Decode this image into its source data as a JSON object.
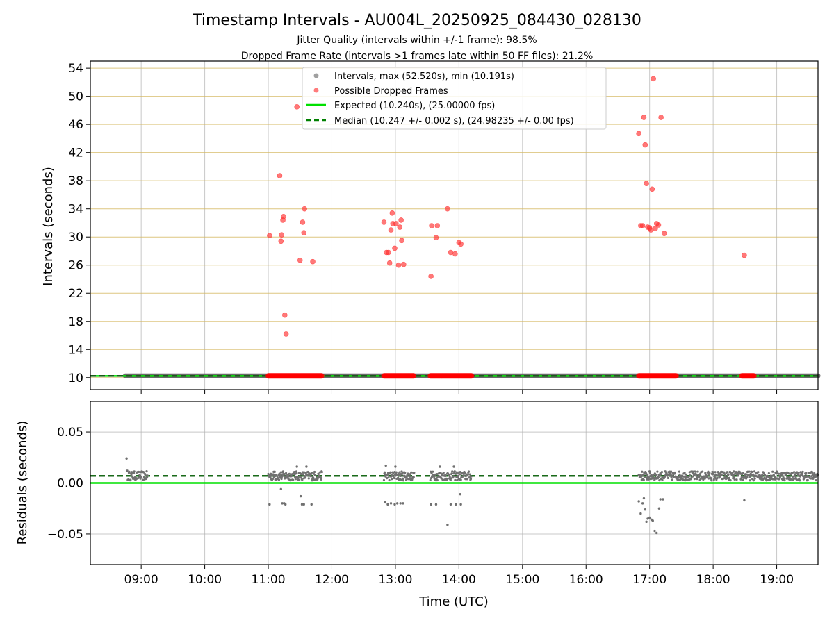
{
  "chart_data": {
    "type": "scatter",
    "title": "Timestamp Intervals - AU004L_20250925_084430_028130",
    "subtitle_1": "Jitter Quality (intervals within +/-1 frame): 98.5%",
    "subtitle_2": "Dropped Frame Rate (intervals >1 frames late within 50 FF files): 21.2%",
    "xlabel": "Time (UTC)",
    "xlim_hours": [
      8.2,
      19.65
    ],
    "xticks": [
      9,
      10,
      11,
      12,
      13,
      14,
      15,
      16,
      17,
      18,
      19
    ],
    "xtick_labels": [
      "09:00",
      "10:00",
      "11:00",
      "12:00",
      "13:00",
      "14:00",
      "15:00",
      "16:00",
      "17:00",
      "18:00",
      "19:00"
    ],
    "top_panel": {
      "ylabel": "Intervals (seconds)",
      "ylim": [
        8.3,
        55
      ],
      "yticks": [
        10,
        14,
        18,
        22,
        26,
        30,
        34,
        38,
        42,
        46,
        50,
        54
      ],
      "ytick_labels": [
        "10",
        "14",
        "18",
        "22",
        "26",
        "30",
        "34",
        "38",
        "42",
        "46",
        "50",
        "54"
      ],
      "legend": [
        {
          "label": "Intervals, max (52.520s), min (10.191s)",
          "kind": "marker",
          "color": "#a0a0a0"
        },
        {
          "label": "Possible Dropped Frames",
          "kind": "marker",
          "color": "#ff5a5a"
        },
        {
          "label": "Expected (10.240s), (25.00000 fps)",
          "kind": "line",
          "color": "#00e000"
        },
        {
          "label": "Median (10.247 +/- 0.002 s), (24.98235 +/- 0.00 fps)",
          "kind": "dashed",
          "color": "#008000"
        }
      ],
      "expected": 10.24,
      "median": 10.247,
      "normal_band": {
        "start_hour": 8.75,
        "end_hour": 19.65,
        "value": 10.247
      },
      "dropped_clusters": [
        [
          11.0,
          11.85
        ],
        [
          12.82,
          13.3
        ],
        [
          13.55,
          14.2
        ],
        [
          16.83,
          17.42
        ],
        [
          18.45,
          18.65
        ]
      ],
      "dropped_points": [
        [
          11.02,
          30.2
        ],
        [
          11.18,
          38.7
        ],
        [
          11.2,
          29.4
        ],
        [
          11.21,
          30.3
        ],
        [
          11.23,
          32.4
        ],
        [
          11.24,
          32.9
        ],
        [
          11.26,
          18.9
        ],
        [
          11.28,
          16.2
        ],
        [
          11.45,
          48.5
        ],
        [
          11.5,
          26.7
        ],
        [
          11.54,
          32.1
        ],
        [
          11.56,
          30.6
        ],
        [
          11.57,
          34.0
        ],
        [
          11.7,
          26.5
        ],
        [
          12.82,
          32.1
        ],
        [
          12.86,
          27.8
        ],
        [
          12.89,
          27.8
        ],
        [
          12.91,
          26.3
        ],
        [
          12.93,
          31.0
        ],
        [
          12.95,
          33.4
        ],
        [
          12.96,
          31.9
        ],
        [
          12.99,
          28.4
        ],
        [
          13.01,
          31.9
        ],
        [
          13.05,
          26.0
        ],
        [
          13.07,
          31.4
        ],
        [
          13.09,
          32.4
        ],
        [
          13.1,
          29.5
        ],
        [
          13.13,
          26.1
        ],
        [
          13.56,
          24.4
        ],
        [
          13.57,
          31.6
        ],
        [
          13.64,
          29.9
        ],
        [
          13.66,
          31.6
        ],
        [
          13.82,
          34.0
        ],
        [
          13.87,
          27.8
        ],
        [
          13.94,
          27.6
        ],
        [
          14.0,
          29.2
        ],
        [
          14.03,
          29.0
        ],
        [
          16.83,
          44.7
        ],
        [
          16.86,
          31.6
        ],
        [
          16.89,
          31.6
        ],
        [
          16.91,
          47.0
        ],
        [
          16.93,
          43.1
        ],
        [
          16.95,
          37.6
        ],
        [
          16.97,
          31.4
        ],
        [
          17.0,
          31.3
        ],
        [
          17.02,
          31.0
        ],
        [
          17.04,
          36.8
        ],
        [
          17.06,
          52.5
        ],
        [
          17.09,
          31.2
        ],
        [
          17.11,
          31.9
        ],
        [
          17.14,
          31.7
        ],
        [
          17.18,
          47.0
        ],
        [
          17.23,
          30.5
        ],
        [
          18.49,
          27.4
        ]
      ]
    },
    "bottom_panel": {
      "ylabel": "Residuals (seconds)",
      "ylim": [
        -0.08,
        0.08
      ],
      "yticks": [
        0.05,
        0.0,
        -0.05
      ],
      "ytick_labels": [
        "0.05",
        "0.00",
        "−0.05"
      ],
      "expected_residual": 0.0,
      "median_residual": 0.007,
      "outlier_points": [
        [
          8.77,
          0.024
        ],
        [
          8.78,
          0.012
        ],
        [
          8.79,
          0.003
        ],
        [
          11.02,
          -0.021
        ],
        [
          11.22,
          -0.02
        ],
        [
          11.25,
          -0.02
        ],
        [
          11.27,
          -0.021
        ],
        [
          11.2,
          -0.006
        ],
        [
          11.51,
          -0.013
        ],
        [
          11.53,
          -0.021
        ],
        [
          11.56,
          -0.021
        ],
        [
          11.68,
          -0.021
        ],
        [
          11.1,
          0.011
        ],
        [
          11.45,
          0.016
        ],
        [
          11.6,
          0.016
        ],
        [
          12.84,
          -0.019
        ],
        [
          12.88,
          -0.021
        ],
        [
          12.93,
          -0.02
        ],
        [
          12.99,
          -0.021
        ],
        [
          13.03,
          -0.02
        ],
        [
          13.08,
          -0.02
        ],
        [
          13.12,
          -0.02
        ],
        [
          12.85,
          0.017
        ],
        [
          13.0,
          0.016
        ],
        [
          13.56,
          -0.021
        ],
        [
          13.64,
          -0.021
        ],
        [
          13.82,
          -0.041
        ],
        [
          13.87,
          -0.021
        ],
        [
          13.95,
          -0.021
        ],
        [
          14.03,
          -0.021
        ],
        [
          14.02,
          -0.011
        ],
        [
          13.7,
          0.016
        ],
        [
          13.92,
          0.016
        ],
        [
          16.83,
          -0.018
        ],
        [
          16.86,
          -0.03
        ],
        [
          16.89,
          -0.02
        ],
        [
          16.91,
          -0.015
        ],
        [
          16.93,
          -0.026
        ],
        [
          16.95,
          -0.038
        ],
        [
          16.97,
          -0.035
        ],
        [
          17.0,
          -0.034
        ],
        [
          17.03,
          -0.036
        ],
        [
          17.05,
          -0.037
        ],
        [
          17.08,
          -0.047
        ],
        [
          17.11,
          -0.049
        ],
        [
          17.15,
          -0.025
        ],
        [
          17.17,
          -0.016
        ],
        [
          17.21,
          -0.016
        ],
        [
          18.49,
          -0.017
        ]
      ],
      "normal_clusters": [
        [
          8.8,
          9.1
        ],
        [
          11.0,
          11.85
        ],
        [
          12.82,
          13.3
        ],
        [
          13.55,
          14.2
        ],
        [
          16.83,
          19.65
        ]
      ]
    }
  }
}
